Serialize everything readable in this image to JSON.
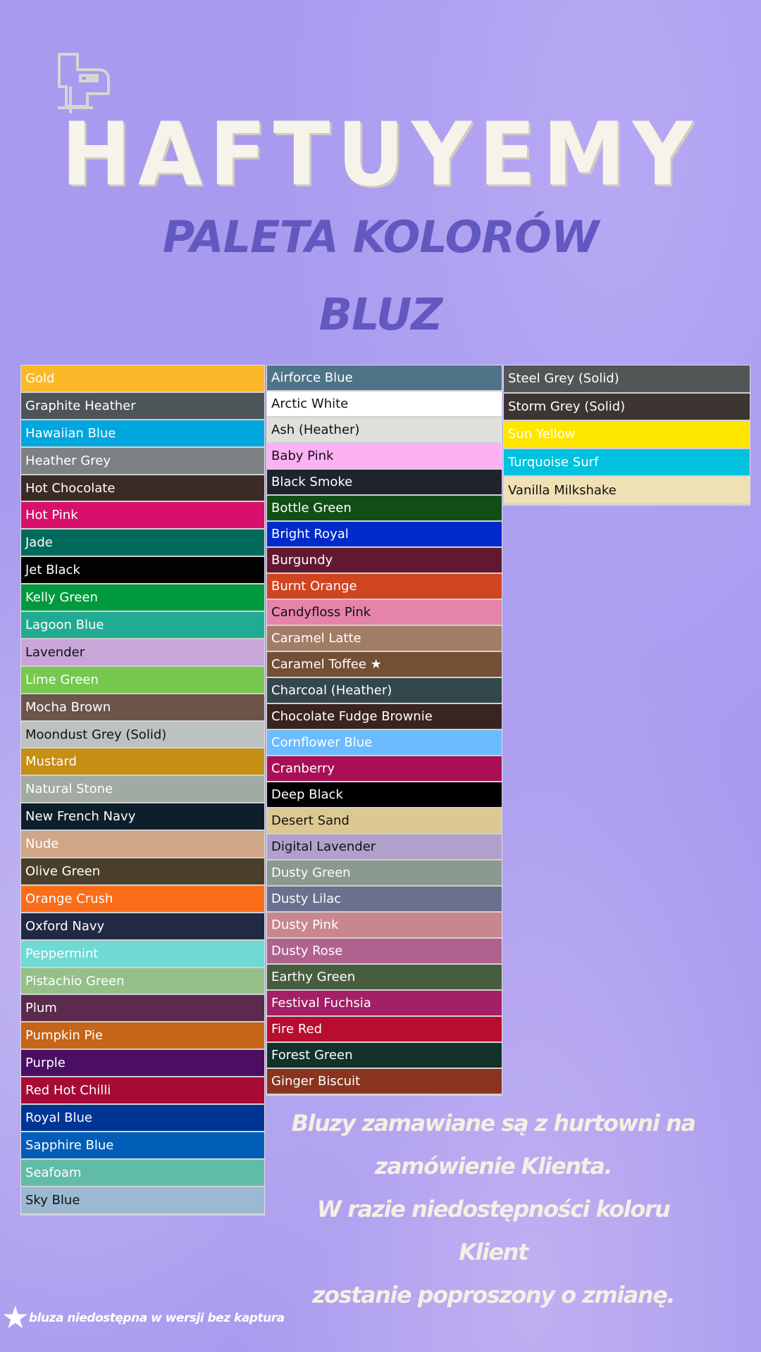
{
  "brand": "HAFTUYEMY",
  "subtitle_line1": "PALETA KOLORÓW",
  "subtitle_line2": "BLUZ",
  "columns": [
    [
      {
        "name": "Gold",
        "color": "#fdb829",
        "text": "#ffffff"
      },
      {
        "name": "Graphite Heather",
        "color": "#4d5558",
        "text": "#ffffff"
      },
      {
        "name": "Hawaiian Blue",
        "color": "#00a7df",
        "text": "#ffffff"
      },
      {
        "name": "Heather Grey",
        "color": "#7e8184",
        "text": "#ffffff"
      },
      {
        "name": "Hot Chocolate",
        "color": "#3a2b27",
        "text": "#ffffff"
      },
      {
        "name": "Hot Pink",
        "color": "#d7106c",
        "text": "#ffffff"
      },
      {
        "name": "Jade",
        "color": "#006a5c",
        "text": "#ffffff"
      },
      {
        "name": "Jet Black",
        "color": "#020202",
        "text": "#ffffff"
      },
      {
        "name": "Kelly Green",
        "color": "#009a3e",
        "text": "#ffffff"
      },
      {
        "name": "Lagoon Blue",
        "color": "#22ab93",
        "text": "#ffffff"
      },
      {
        "name": "Lavender",
        "color": "#c8a6d8",
        "text": "#111111"
      },
      {
        "name": "Lime Green",
        "color": "#76c84f",
        "text": "#ffffff"
      },
      {
        "name": "Mocha Brown",
        "color": "#6c5448",
        "text": "#ffffff"
      },
      {
        "name": "Moondust Grey (Solid)",
        "color": "#bcc2c0",
        "text": "#111111"
      },
      {
        "name": "Mustard",
        "color": "#c78e14",
        "text": "#ffffff"
      },
      {
        "name": "Natural Stone",
        "color": "#a1aba4",
        "text": "#ffffff"
      },
      {
        "name": "New French Navy",
        "color": "#0e1e2b",
        "text": "#ffffff"
      },
      {
        "name": "Nude",
        "color": "#d0a688",
        "text": "#ffffff"
      },
      {
        "name": "Olive Green",
        "color": "#4a3f2b",
        "text": "#ffffff"
      },
      {
        "name": "Orange Crush",
        "color": "#fc6d19",
        "text": "#ffffff"
      },
      {
        "name": "Oxford Navy",
        "color": "#212a44",
        "text": "#ffffff"
      },
      {
        "name": "Peppermint",
        "color": "#6fdad2",
        "text": "#ffffff"
      },
      {
        "name": "Pistachio Green",
        "color": "#95c08a",
        "text": "#ffffff"
      },
      {
        "name": "Plum",
        "color": "#5b2a4d",
        "text": "#ffffff"
      },
      {
        "name": "Pumpkin Pie",
        "color": "#c66417",
        "text": "#ffffff"
      },
      {
        "name": "Purple",
        "color": "#4b0e62",
        "text": "#ffffff"
      },
      {
        "name": "Red Hot Chilli",
        "color": "#a60a36",
        "text": "#ffffff"
      },
      {
        "name": "Royal Blue",
        "color": "#003596",
        "text": "#ffffff"
      },
      {
        "name": "Sapphire Blue",
        "color": "#005eb8",
        "text": "#ffffff"
      },
      {
        "name": "Seafoam",
        "color": "#60bca8",
        "text": "#ffffff"
      },
      {
        "name": "Sky Blue",
        "color": "#9cb9d3",
        "text": "#111111"
      }
    ],
    [
      {
        "name": "Airforce Blue",
        "color": "#4f7488",
        "text": "#ffffff"
      },
      {
        "name": "Arctic White",
        "color": "#ffffff",
        "text": "#111111"
      },
      {
        "name": "Ash (Heather)",
        "color": "#dfe0dc",
        "text": "#111111"
      },
      {
        "name": "Baby Pink",
        "color": "#fdb1f5",
        "text": "#111111"
      },
      {
        "name": "Black Smoke",
        "color": "#20232e",
        "text": "#ffffff"
      },
      {
        "name": "Bottle Green",
        "color": "#124f18",
        "text": "#ffffff"
      },
      {
        "name": "Bright Royal",
        "color": "#002bca",
        "text": "#ffffff"
      },
      {
        "name": "Burgundy",
        "color": "#62192f",
        "text": "#ffffff"
      },
      {
        "name": "Burnt Orange",
        "color": "#cf4520",
        "text": "#ffffff"
      },
      {
        "name": "Candyfloss Pink",
        "color": "#e683a8",
        "text": "#111111"
      },
      {
        "name": "Caramel Latte",
        "color": "#a27d66",
        "text": "#ffffff"
      },
      {
        "name": "Caramel Toffee ★",
        "color": "#744f36",
        "text": "#ffffff"
      },
      {
        "name": "Charcoal (Heather)",
        "color": "#34474a",
        "text": "#ffffff"
      },
      {
        "name": "Chocolate Fudge Brownie",
        "color": "#3a2420",
        "text": "#ffffff"
      },
      {
        "name": "Cornflower Blue",
        "color": "#6bbcff",
        "text": "#ffffff"
      },
      {
        "name": "Cranberry",
        "color": "#a90f55",
        "text": "#ffffff"
      },
      {
        "name": "Deep Black",
        "color": "#000000",
        "text": "#ffffff"
      },
      {
        "name": "Desert Sand",
        "color": "#dcc991",
        "text": "#111111"
      },
      {
        "name": "Digital Lavender",
        "color": "#b1a0cc",
        "text": "#111111"
      },
      {
        "name": "Dusty Green",
        "color": "#8a9a8e",
        "text": "#ffffff"
      },
      {
        "name": "Dusty Lilac",
        "color": "#6b708f",
        "text": "#ffffff"
      },
      {
        "name": "Dusty Pink",
        "color": "#c8878e",
        "text": "#ffffff"
      },
      {
        "name": "Dusty Rose",
        "color": "#b0628e",
        "text": "#ffffff"
      },
      {
        "name": "Earthy Green",
        "color": "#465e3e",
        "text": "#ffffff"
      },
      {
        "name": "Festival Fuchsia",
        "color": "#a41f66",
        "text": "#ffffff"
      },
      {
        "name": "Fire Red",
        "color": "#b80d2d",
        "text": "#ffffff"
      },
      {
        "name": "Forest Green",
        "color": "#12322a",
        "text": "#ffffff"
      },
      {
        "name": "Ginger Biscuit",
        "color": "#8a341f",
        "text": "#ffffff"
      }
    ],
    [
      {
        "name": "Steel Grey (Solid)",
        "color": "#535656",
        "text": "#ffffff"
      },
      {
        "name": "Storm Grey (Solid)",
        "color": "#3c3532",
        "text": "#ffffff"
      },
      {
        "name": "Sun Yellow",
        "color": "#ffe600",
        "text": "#ffffff"
      },
      {
        "name": "Turquoise Surf",
        "color": "#00c1de",
        "text": "#ffffff"
      },
      {
        "name": "Vanilla Milkshake",
        "color": "#efe1b4",
        "text": "#111111"
      }
    ]
  ],
  "note": {
    "line1": "Bluzy zamawiane są z hurtowni na",
    "line2": "zamówienie Klienta.",
    "line3": "W razie niedostępności koloru Klient",
    "line4": "zostanie poproszony o zmianę."
  },
  "footnote": {
    "star": "★",
    "text": "bluza niedostępna w wersji bez kaptura"
  }
}
